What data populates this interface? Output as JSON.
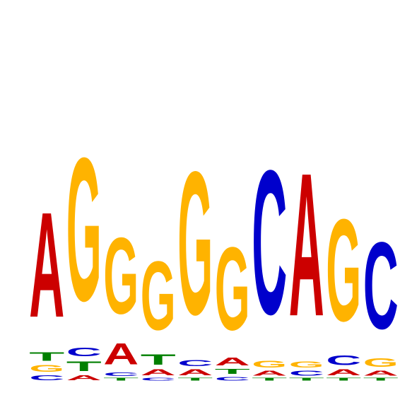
{
  "colors": {
    "A": "#cc0000",
    "C": "#0000cc",
    "G": "#ffb300",
    "T": "#007f00"
  },
  "logo": {
    "max_bits": 2.0,
    "positions": [
      [
        [
          "C",
          0.05
        ],
        [
          "G",
          0.07
        ],
        [
          "T",
          0.09
        ],
        [
          "A",
          1.1
        ]
      ],
      [
        [
          "A",
          0.05
        ],
        [
          "T",
          0.1
        ],
        [
          "C",
          0.09
        ],
        [
          "G",
          1.5
        ]
      ],
      [
        [
          "T",
          0.03
        ],
        [
          "C",
          0.04
        ],
        [
          "A",
          0.22
        ],
        [
          "G",
          0.8
        ]
      ],
      [
        [
          "C",
          0.03
        ],
        [
          "A",
          0.06
        ],
        [
          "T",
          0.11
        ],
        [
          "G",
          0.72
        ]
      ],
      [
        [
          "T",
          0.03
        ],
        [
          "A",
          0.06
        ],
        [
          "C",
          0.06
        ],
        [
          "G",
          1.5
        ]
      ],
      [
        [
          "C",
          0.04
        ],
        [
          "T",
          0.05
        ],
        [
          "A",
          0.08
        ],
        [
          "G",
          0.87
        ]
      ],
      [
        [
          "T",
          0.03
        ],
        [
          "A",
          0.05
        ],
        [
          "G",
          0.07
        ],
        [
          "C",
          1.51
        ]
      ],
      [
        [
          "T",
          0.03
        ],
        [
          "C",
          0.05
        ],
        [
          "G",
          0.06
        ],
        [
          "A",
          1.5
        ]
      ],
      [
        [
          "T",
          0.03
        ],
        [
          "A",
          0.06
        ],
        [
          "C",
          0.1
        ],
        [
          "G",
          1.07
        ]
      ],
      [
        [
          "T",
          0.03
        ],
        [
          "A",
          0.05
        ],
        [
          "G",
          0.09
        ],
        [
          "C",
          0.91
        ]
      ]
    ]
  }
}
